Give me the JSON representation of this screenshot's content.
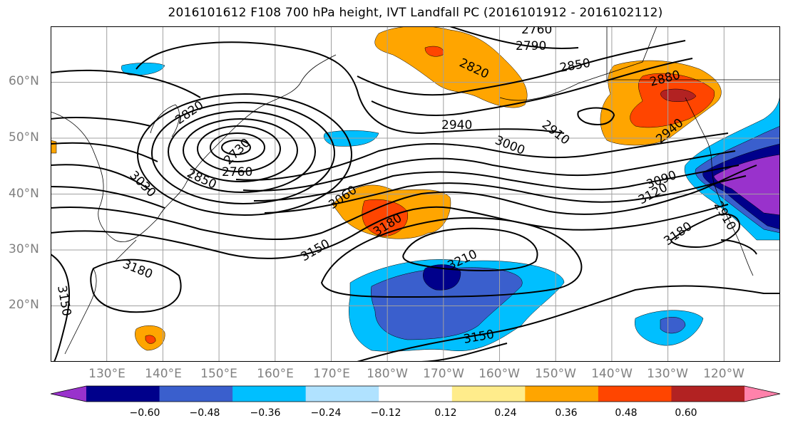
{
  "title": "2016101612 F108 700 hPa height, IVT Landfall PC (2016101912 - 2016102112)",
  "map": {
    "projection": "cylindrical",
    "lon_range": [
      120,
      250
    ],
    "lat_range": [
      10,
      70
    ],
    "gridlines": true,
    "latitude_labels": [
      "60°N",
      "50°N",
      "40°N",
      "30°N",
      "20°N"
    ],
    "longitude_labels": [
      "130°E",
      "140°E",
      "150°E",
      "160°E",
      "170°E",
      "180°W",
      "170°W",
      "160°W",
      "150°W",
      "140°W",
      "130°W",
      "120°W"
    ],
    "height_contour_labels": [
      "2760",
      "2790",
      "2820",
      "2850",
      "2880",
      "2910",
      "2940",
      "3000",
      "3030",
      "3060",
      "3090",
      "3120",
      "3150",
      "3180",
      "3210",
      "2730",
      "2760",
      "2850",
      "3180",
      "3150",
      "3180",
      "3150",
      "2910",
      "2940",
      "2820"
    ]
  },
  "colorbar": {
    "tick_labels": [
      "−0.60",
      "−0.48",
      "−0.36",
      "−0.24",
      "−0.12",
      "0.12",
      "0.24",
      "0.36",
      "0.48",
      "0.60"
    ],
    "colors": [
      "#9932cc",
      "#00008b",
      "#3a5fcd",
      "#00bfff",
      "#b0e2ff",
      "#ffffff",
      "#ffec8b",
      "#ffa500",
      "#ff4500",
      "#b22222",
      "#ff82ab"
    ]
  }
}
